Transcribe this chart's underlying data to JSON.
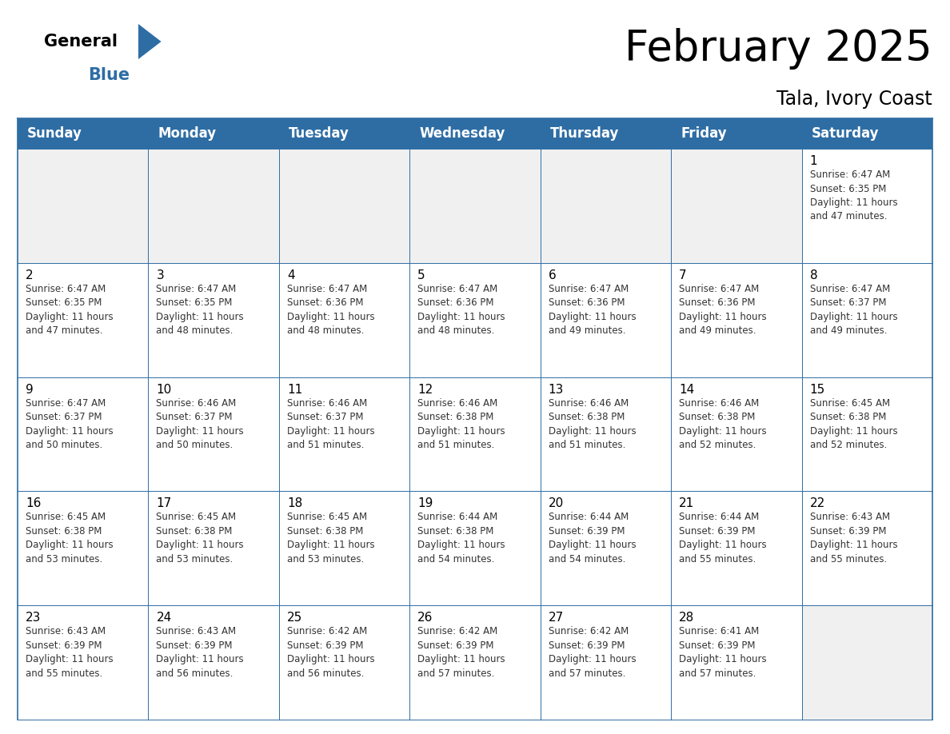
{
  "title": "February 2025",
  "subtitle": "Tala, Ivory Coast",
  "header_bg_color": "#2E6DA4",
  "header_text_color": "#FFFFFF",
  "cell_bg_white": "#FFFFFF",
  "cell_bg_gray": "#F0F0F0",
  "border_color": "#2E6DA4",
  "text_color": "#333333",
  "day_headers": [
    "Sunday",
    "Monday",
    "Tuesday",
    "Wednesday",
    "Thursday",
    "Friday",
    "Saturday"
  ],
  "calendar_data": [
    [
      null,
      null,
      null,
      null,
      null,
      null,
      {
        "day": 1,
        "sunrise": "6:47 AM",
        "sunset": "6:35 PM",
        "daylight_hours": 11,
        "daylight_minutes": 47
      }
    ],
    [
      {
        "day": 2,
        "sunrise": "6:47 AM",
        "sunset": "6:35 PM",
        "daylight_hours": 11,
        "daylight_minutes": 47
      },
      {
        "day": 3,
        "sunrise": "6:47 AM",
        "sunset": "6:35 PM",
        "daylight_hours": 11,
        "daylight_minutes": 48
      },
      {
        "day": 4,
        "sunrise": "6:47 AM",
        "sunset": "6:36 PM",
        "daylight_hours": 11,
        "daylight_minutes": 48
      },
      {
        "day": 5,
        "sunrise": "6:47 AM",
        "sunset": "6:36 PM",
        "daylight_hours": 11,
        "daylight_minutes": 48
      },
      {
        "day": 6,
        "sunrise": "6:47 AM",
        "sunset": "6:36 PM",
        "daylight_hours": 11,
        "daylight_minutes": 49
      },
      {
        "day": 7,
        "sunrise": "6:47 AM",
        "sunset": "6:36 PM",
        "daylight_hours": 11,
        "daylight_minutes": 49
      },
      {
        "day": 8,
        "sunrise": "6:47 AM",
        "sunset": "6:37 PM",
        "daylight_hours": 11,
        "daylight_minutes": 49
      }
    ],
    [
      {
        "day": 9,
        "sunrise": "6:47 AM",
        "sunset": "6:37 PM",
        "daylight_hours": 11,
        "daylight_minutes": 50
      },
      {
        "day": 10,
        "sunrise": "6:46 AM",
        "sunset": "6:37 PM",
        "daylight_hours": 11,
        "daylight_minutes": 50
      },
      {
        "day": 11,
        "sunrise": "6:46 AM",
        "sunset": "6:37 PM",
        "daylight_hours": 11,
        "daylight_minutes": 51
      },
      {
        "day": 12,
        "sunrise": "6:46 AM",
        "sunset": "6:38 PM",
        "daylight_hours": 11,
        "daylight_minutes": 51
      },
      {
        "day": 13,
        "sunrise": "6:46 AM",
        "sunset": "6:38 PM",
        "daylight_hours": 11,
        "daylight_minutes": 51
      },
      {
        "day": 14,
        "sunrise": "6:46 AM",
        "sunset": "6:38 PM",
        "daylight_hours": 11,
        "daylight_minutes": 52
      },
      {
        "day": 15,
        "sunrise": "6:45 AM",
        "sunset": "6:38 PM",
        "daylight_hours": 11,
        "daylight_minutes": 52
      }
    ],
    [
      {
        "day": 16,
        "sunrise": "6:45 AM",
        "sunset": "6:38 PM",
        "daylight_hours": 11,
        "daylight_minutes": 53
      },
      {
        "day": 17,
        "sunrise": "6:45 AM",
        "sunset": "6:38 PM",
        "daylight_hours": 11,
        "daylight_minutes": 53
      },
      {
        "day": 18,
        "sunrise": "6:45 AM",
        "sunset": "6:38 PM",
        "daylight_hours": 11,
        "daylight_minutes": 53
      },
      {
        "day": 19,
        "sunrise": "6:44 AM",
        "sunset": "6:38 PM",
        "daylight_hours": 11,
        "daylight_minutes": 54
      },
      {
        "day": 20,
        "sunrise": "6:44 AM",
        "sunset": "6:39 PM",
        "daylight_hours": 11,
        "daylight_minutes": 54
      },
      {
        "day": 21,
        "sunrise": "6:44 AM",
        "sunset": "6:39 PM",
        "daylight_hours": 11,
        "daylight_minutes": 55
      },
      {
        "day": 22,
        "sunrise": "6:43 AM",
        "sunset": "6:39 PM",
        "daylight_hours": 11,
        "daylight_minutes": 55
      }
    ],
    [
      {
        "day": 23,
        "sunrise": "6:43 AM",
        "sunset": "6:39 PM",
        "daylight_hours": 11,
        "daylight_minutes": 55
      },
      {
        "day": 24,
        "sunrise": "6:43 AM",
        "sunset": "6:39 PM",
        "daylight_hours": 11,
        "daylight_minutes": 56
      },
      {
        "day": 25,
        "sunrise": "6:42 AM",
        "sunset": "6:39 PM",
        "daylight_hours": 11,
        "daylight_minutes": 56
      },
      {
        "day": 26,
        "sunrise": "6:42 AM",
        "sunset": "6:39 PM",
        "daylight_hours": 11,
        "daylight_minutes": 57
      },
      {
        "day": 27,
        "sunrise": "6:42 AM",
        "sunset": "6:39 PM",
        "daylight_hours": 11,
        "daylight_minutes": 57
      },
      {
        "day": 28,
        "sunrise": "6:41 AM",
        "sunset": "6:39 PM",
        "daylight_hours": 11,
        "daylight_minutes": 57
      },
      null
    ]
  ],
  "title_fontsize": 38,
  "subtitle_fontsize": 17,
  "header_fontsize": 12,
  "day_number_fontsize": 11,
  "cell_text_fontsize": 8.5,
  "logo_general_fontsize": 15,
  "logo_blue_fontsize": 15
}
